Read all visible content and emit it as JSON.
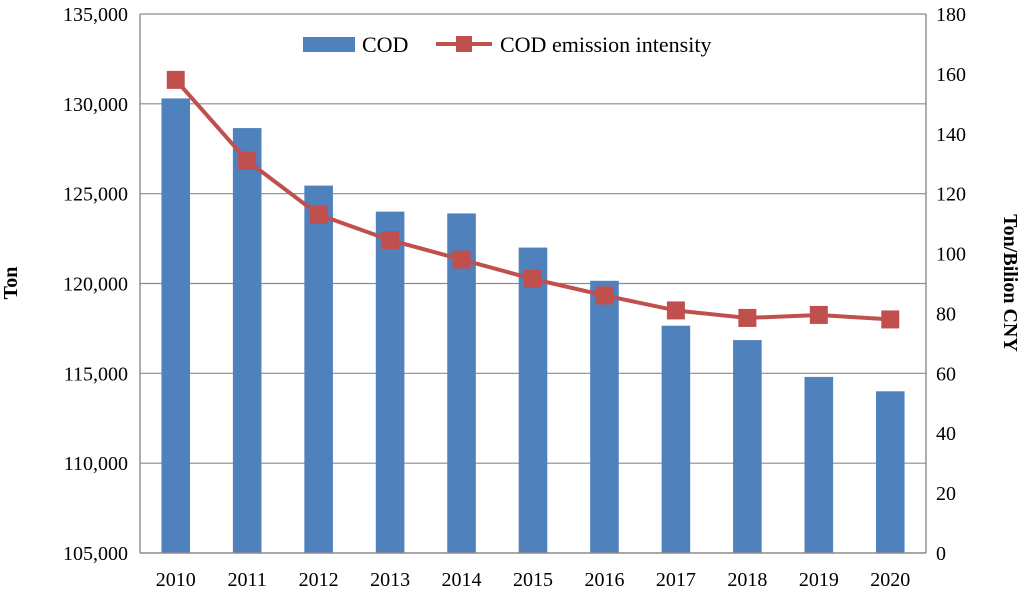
{
  "chart_data": {
    "type": "bar+line",
    "categories": [
      "2010",
      "2011",
      "2012",
      "2013",
      "2014",
      "2015",
      "2016",
      "2017",
      "2018",
      "2019",
      "2020"
    ],
    "series": [
      {
        "name": "COD",
        "kind": "bar",
        "axis": "left",
        "color": "#4f81bd",
        "values": [
          130300,
          128650,
          125450,
          124000,
          123900,
          122000,
          120150,
          117650,
          116850,
          114800,
          114000
        ]
      },
      {
        "name": "COD emission intensity",
        "kind": "line",
        "axis": "right",
        "color": "#c0504d",
        "values": [
          158,
          131,
          113,
          104.5,
          98,
          91.5,
          86,
          81,
          78.5,
          79.5,
          78
        ]
      }
    ],
    "ylabel": "Ton",
    "y2label": "Ton/Bilion CNY",
    "ylim": [
      105000,
      135000
    ],
    "y2lim": [
      0,
      180
    ],
    "yticks": [
      "105,000",
      "110,000",
      "115,000",
      "120,000",
      "125,000",
      "130,000",
      "135,000"
    ],
    "y2ticks": [
      "0",
      "20",
      "40",
      "60",
      "80",
      "100",
      "120",
      "140",
      "160",
      "180"
    ],
    "legend": [
      "COD",
      "COD emission intensity"
    ],
    "legend_position": "top-center",
    "grid": true
  }
}
